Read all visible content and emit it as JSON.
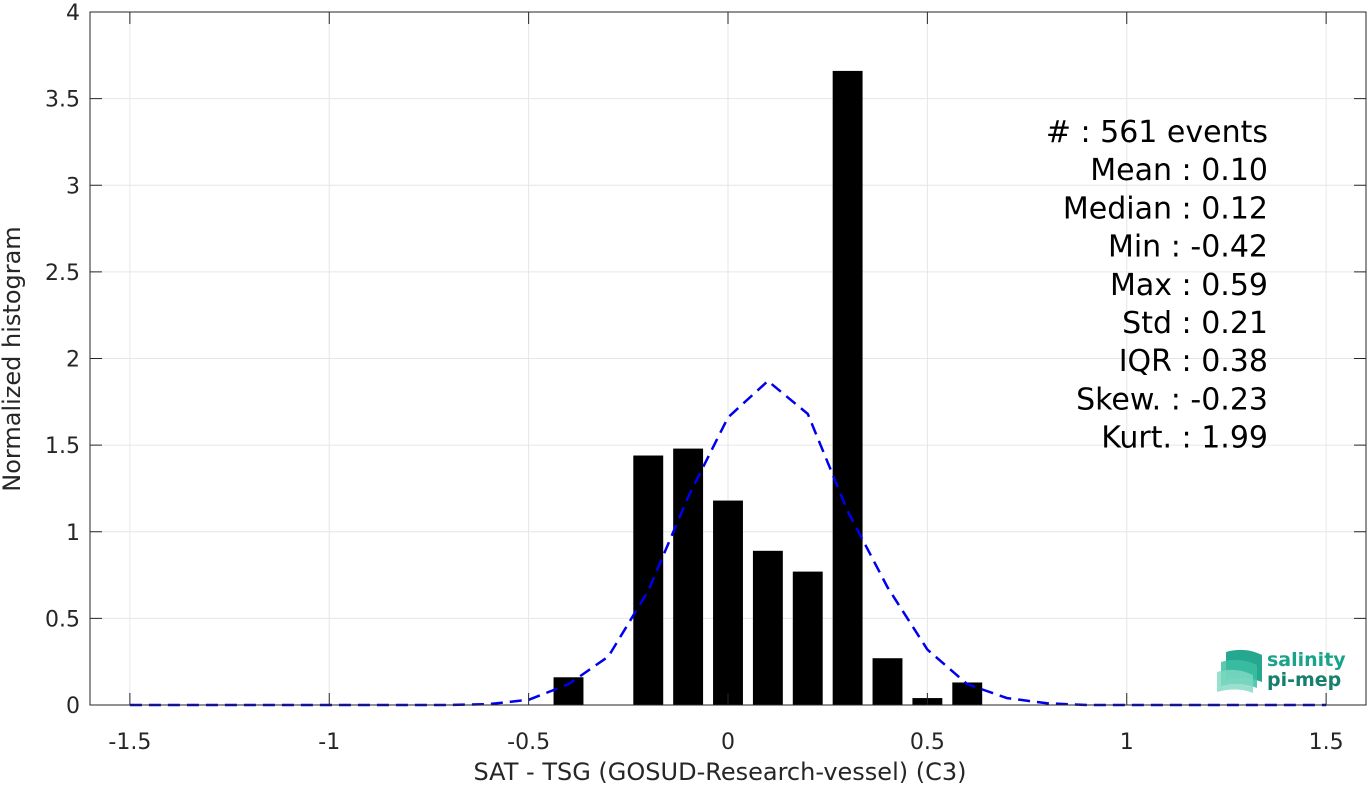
{
  "chart_data": {
    "type": "bar",
    "xlabel": "SAT - TSG (GOSUD-Research-vessel) (C3)",
    "ylabel": "Normalized histogram",
    "xlim": [
      -1.6,
      1.6
    ],
    "ylim": [
      0,
      4
    ],
    "grid": true,
    "xticks": [
      -1.5,
      -1,
      -0.5,
      0,
      0.5,
      1,
      1.5
    ],
    "xtick_labels": [
      "-1.5",
      "-1",
      "-0.5",
      "0",
      "0.5",
      "1",
      "1.5"
    ],
    "yticks": [
      0,
      0.5,
      1,
      1.5,
      2,
      2.5,
      3,
      3.5,
      4
    ],
    "ytick_labels": [
      "0",
      "0.5",
      "1",
      "1.5",
      "2",
      "2.5",
      "3",
      "3.5",
      "4"
    ],
    "bar_width": 0.075,
    "bars": [
      {
        "x": -0.4,
        "y": 0.16
      },
      {
        "x": -0.2,
        "y": 1.44
      },
      {
        "x": -0.1,
        "y": 1.48
      },
      {
        "x": 0.0,
        "y": 1.18
      },
      {
        "x": 0.1,
        "y": 0.89
      },
      {
        "x": 0.2,
        "y": 0.77
      },
      {
        "x": 0.3,
        "y": 3.66
      },
      {
        "x": 0.4,
        "y": 0.27
      },
      {
        "x": 0.5,
        "y": 0.04
      },
      {
        "x": 0.6,
        "y": 0.13
      }
    ],
    "bar_color": "#000000",
    "fit_line": {
      "style": "dashed",
      "color": "#0000ee",
      "x": [
        -1.5,
        -1.4,
        -1.3,
        -1.2,
        -1.1,
        -1.0,
        -0.9,
        -0.8,
        -0.7,
        -0.6,
        -0.5,
        -0.4,
        -0.3,
        -0.2,
        -0.1,
        0.0,
        0.1,
        0.2,
        0.3,
        0.4,
        0.5,
        0.6,
        0.7,
        0.8,
        0.9,
        1.0,
        1.1,
        1.2,
        1.3,
        1.4,
        1.5
      ],
      "y": [
        0,
        0,
        0,
        0,
        0,
        0,
        0,
        0,
        0,
        0.005,
        0.03,
        0.12,
        0.28,
        0.66,
        1.2,
        1.66,
        1.87,
        1.68,
        1.12,
        0.68,
        0.32,
        0.12,
        0.04,
        0.01,
        0,
        0,
        0,
        0,
        0,
        0,
        0
      ]
    },
    "stats": [
      {
        "label": "#  : 561 events"
      },
      {
        "label": "Mean : 0.10"
      },
      {
        "label": "Median : 0.12"
      },
      {
        "label": "Min : -0.42"
      },
      {
        "label": "Max : 0.59"
      },
      {
        "label": "Std : 0.21"
      },
      {
        "label": "IQR : 0.38"
      },
      {
        "label": "Skew. : -0.23"
      },
      {
        "label": "Kurt. : 1.99"
      }
    ],
    "stats_placement": "top-right",
    "logo": {
      "line1": "salinity",
      "line2": "pi-mep",
      "color1": "#1aa38a",
      "color2": "#17806c"
    }
  }
}
